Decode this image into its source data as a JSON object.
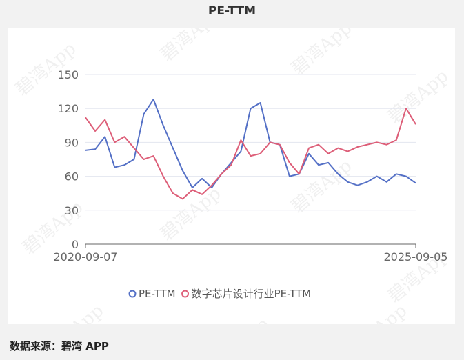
{
  "chart_data": {
    "type": "line",
    "title": "PE-TTM",
    "x_start_label": "2020-09-07",
    "x_end_label": "2025-09-05",
    "x": [
      "2020-09",
      "2020-11",
      "2021-01",
      "2021-03",
      "2021-05",
      "2021-06",
      "2021-07",
      "2021-09",
      "2021-11",
      "2022-01",
      "2022-03",
      "2022-05",
      "2022-07",
      "2022-09",
      "2022-11",
      "2023-01",
      "2023-03",
      "2023-05",
      "2023-07",
      "2023-08",
      "2023-09",
      "2023-11",
      "2024-01",
      "2024-02",
      "2024-03",
      "2024-05",
      "2024-07",
      "2024-09",
      "2024-11",
      "2025-01",
      "2025-03",
      "2025-05",
      "2025-07",
      "2025-08",
      "2025-09"
    ],
    "ylim": [
      0,
      150
    ],
    "yticks": [
      0,
      30,
      60,
      90,
      120,
      150
    ],
    "series": [
      {
        "name": "PE-TTM",
        "color": "#5470c6",
        "values": [
          83,
          84,
          95,
          68,
          70,
          75,
          115,
          128,
          105,
          85,
          65,
          50,
          58,
          50,
          62,
          72,
          82,
          120,
          125,
          90,
          88,
          60,
          62,
          80,
          70,
          72,
          62,
          55,
          52,
          55,
          60,
          55,
          62,
          60,
          54
        ]
      },
      {
        "name": "数字芯片设计行业PE-TTM",
        "color": "#dd5e78",
        "values": [
          112,
          100,
          110,
          90,
          95,
          85,
          75,
          78,
          60,
          45,
          40,
          48,
          44,
          52,
          62,
          70,
          92,
          78,
          80,
          90,
          88,
          72,
          62,
          85,
          88,
          80,
          85,
          82,
          86,
          88,
          90,
          88,
          92,
          120,
          106
        ]
      }
    ]
  },
  "watermark_text": "碧湾App",
  "source_text": "数据来源：碧湾 APP"
}
